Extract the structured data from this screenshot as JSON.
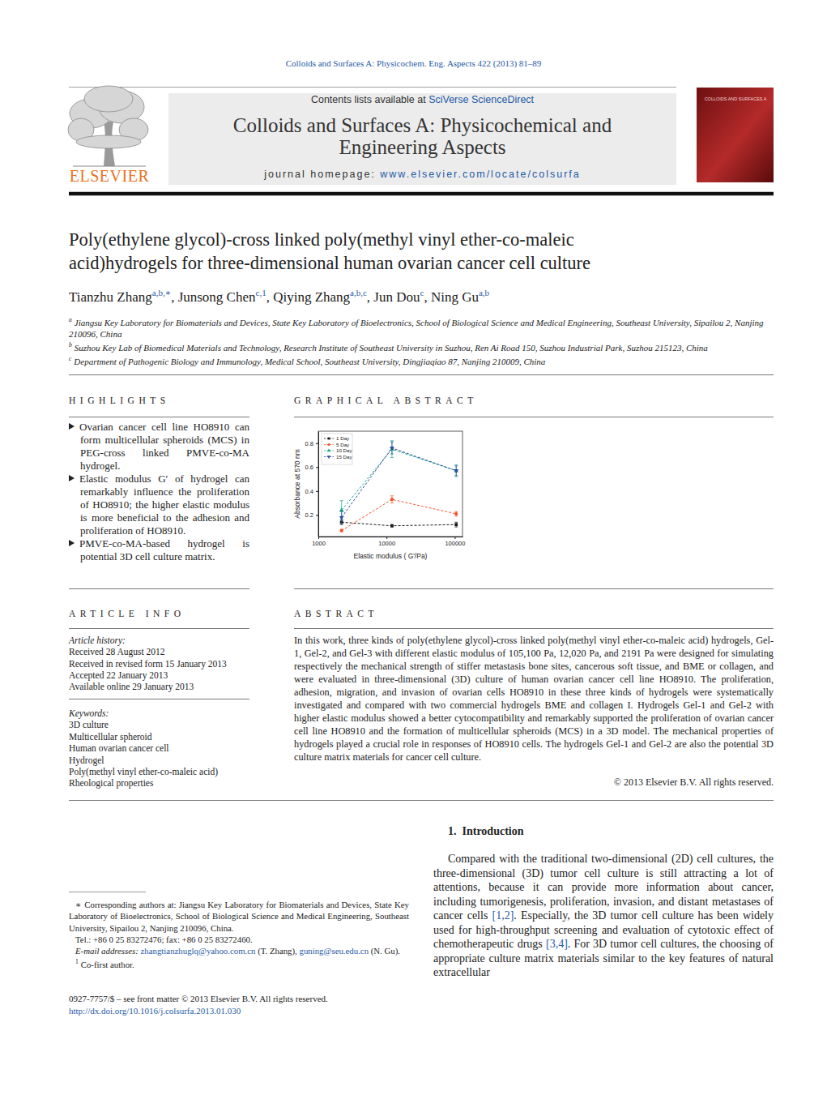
{
  "header": {
    "citation": "Colloids and Surfaces A: Physicochem. Eng. Aspects 422 (2013) 81–89",
    "contents_prefix": "Contents lists available at ",
    "contents_link": "SciVerse ScienceDirect",
    "journal": [
      "Colloids and Surfaces A: Physicochemical and",
      "Engineering Aspects"
    ],
    "homepage_prefix": "journal homepage: ",
    "homepage_link": "www.elsevier.com/locate/colsurfa",
    "publisher": "ELSEVIER",
    "cover_title": "COLLOIDS AND SURFACES A"
  },
  "title": [
    "Poly(ethylene glycol)-cross linked poly(methyl vinyl ether-co-maleic",
    "acid)hydrogels for three-dimensional human ovarian cancer cell culture"
  ],
  "authors": [
    {
      "name": "Tianzhu Zhang",
      "sup": "a,b,∗",
      "sep": ", "
    },
    {
      "name": "Junsong Chen",
      "sup": "c,1",
      "sep": ", "
    },
    {
      "name": "Qiying Zhang",
      "sup": "a,b,c",
      "sep": ", "
    },
    {
      "name": "Jun Dou",
      "sup": "c",
      "sep": ", "
    },
    {
      "name": "Ning Gu",
      "sup": "a,b"
    }
  ],
  "affiliations": [
    {
      "mark": "a",
      "text": "Jiangsu Key Laboratory for Biomaterials and Devices, State Key Laboratory of Bioelectronics, School of Biological Science and Medical Engineering, Southeast University, Sipailou 2, Nanjing 210096, China"
    },
    {
      "mark": "b",
      "text": "Suzhou Key Lab of Biomedical Materials and Technology, Research Institute of Southeast University in Suzhou, Ren Ai Road 150, Suzhou Industrial Park, Suzhou 215123, China"
    },
    {
      "mark": "c",
      "text": "Department of Pathogenic Biology and Immunology, Medical School, Southeast University, Dingjiaqiao 87, Nanjing 210009, China"
    }
  ],
  "highlights": {
    "heading": "HIGHLIGHTS",
    "items": [
      "Ovarian cancer cell line HO8910 can form multicellular spheroids (MCS) in PEG-cross linked PMVE-co-MA hydrogel.",
      "Elastic modulus G′ of hydrogel can remarkably influence the proliferation of HO8910; the higher elastic modulus is more beneficial to the adhesion and proliferation of HO8910.",
      "PMVE-co-MA-based hydrogel is potential 3D cell culture matrix."
    ]
  },
  "graphical_abstract": {
    "heading": "GRAPHICAL ABSTRACT"
  },
  "chart_data": {
    "type": "line",
    "x_label": "Elastic modulus ( G'/Pa)",
    "y_label": "Absorbance at 570 nm",
    "x": [
      2191,
      12020,
      105100
    ],
    "log": "x",
    "xlim": [
      1000,
      130000
    ],
    "xticks": [
      1000,
      10000,
      100000
    ],
    "ylim": [
      0.02,
      0.9
    ],
    "yticks": [
      0.2,
      0.4,
      0.6,
      0.8
    ],
    "grid": false,
    "legend": "upper left",
    "series": [
      {
        "name": "1 Day",
        "color": "#1a1a1a",
        "marker": "square",
        "line_style": "dashed",
        "values": [
          0.14,
          0.11,
          0.12
        ],
        "errors": [
          0.02,
          0.01,
          0.02
        ]
      },
      {
        "name": "5 Day",
        "color": "#f0552a",
        "marker": "circle",
        "line_style": "dashed",
        "values": [
          0.07,
          0.33,
          0.21
        ],
        "errors": [
          0.01,
          0.03,
          0.02
        ]
      },
      {
        "name": "10 Day",
        "color": "#17a589",
        "marker": "triangle",
        "line_style": "dashed",
        "values": [
          0.24,
          0.75,
          0.57
        ],
        "errors": [
          0.08,
          0.07,
          0.05
        ]
      },
      {
        "name": "15 Day",
        "color": "#2e4a9e",
        "marker": "triangle-down",
        "line_style": "dashed",
        "values": [
          0.18,
          0.76,
          0.57
        ],
        "errors": [
          0.05,
          0.05,
          0.04
        ]
      }
    ]
  },
  "article_info": {
    "heading": "ARTICLE INFO",
    "history_label": "Article history:",
    "history": [
      "Received 28 August 2012",
      "Received in revised form 15 January 2013",
      "Accepted 22 January 2013",
      "Available online 29 January 2013"
    ],
    "keywords_label": "Keywords:",
    "keywords": [
      "3D culture",
      "Multicellular spheroid",
      "Human ovarian cancer cell",
      "Hydrogel",
      "Poly(methyl vinyl ether-co-maleic acid)",
      "Rheological properties"
    ]
  },
  "abstract": {
    "heading": "ABSTRACT",
    "text": "In this work, three kinds of poly(ethylene glycol)-cross linked poly(methyl vinyl ether-co-maleic acid) hydrogels, Gel-1, Gel-2, and Gel-3 with different elastic modulus of 105,100 Pa, 12,020 Pa, and 2191 Pa were designed for simulating respectively the mechanical strength of stiffer metastasis bone sites, cancerous soft tissue, and BME or collagen, and were evaluated in three-dimensional (3D) culture of human ovarian cancer cell line HO8910. The proliferation, adhesion, migration, and invasion of ovarian cells HO8910 in these three kinds of hydrogels were systematically investigated and compared with two commercial hydrogels BME and collagen I. Hydrogels Gel-1 and Gel-2 with higher elastic modulus showed a better cytocompatibility and remarkably supported the proliferation of ovarian cancer cell line HO8910 and the formation of multicellular spheroids (MCS) in a 3D model. The mechanical properties of hydrogels played a crucial role in responses of HO8910 cells. The hydrogels Gel-1 and Gel-2 are also the potential 3D culture matrix materials for cancer cell culture.",
    "copyright": "© 2013 Elsevier B.V. All rights reserved."
  },
  "introduction": {
    "heading": "1.  Introduction",
    "paragraph": [
      {
        "text": "Compared with the traditional two-dimensional (2D) cell cultures, the three-dimensional (3D) tumor cell culture is still attracting a lot of attentions, because it can provide more information about cancer, including tumorigenesis, proliferation, invasion, and distant metastases of cancer cells ",
        "kind": "plain"
      },
      {
        "text": "[1,2]",
        "kind": "link"
      },
      {
        "text": ". Especially, the 3D tumor cell culture has been widely used for high-throughput screening and evaluation of cytotoxic effect of chemotherapeutic drugs ",
        "kind": "plain"
      },
      {
        "text": "[3,4]",
        "kind": "link"
      },
      {
        "text": ". For 3D tumor cell cultures, the choosing of appropriate culture matrix materials similar to the key features of natural extracellular",
        "kind": "plain"
      }
    ]
  },
  "footnotes": {
    "corresponding_mark": "∗",
    "corresponding": "Corresponding authors at: Jiangsu Key Laboratory for Biomaterials and Devices, State Key Laboratory of Bioelectronics, School of Biological Science and Medical Engineering, Southeast University, Sipailou 2, Nanjing 210096, China.",
    "tel": "Tel.: +86 0 25 83272476; fax: +86 0 25 83272460.",
    "email": [
      {
        "text": "E-mail addresses: ",
        "kind": "italic"
      },
      {
        "text": "zhangtianzhuglq@yahoo.com.cn",
        "kind": "link"
      },
      {
        "text": " (T. Zhang), ",
        "kind": "plain"
      },
      {
        "text": "guning@seu.edu.cn",
        "kind": "link"
      },
      {
        "text": " (N. Gu).",
        "kind": "plain"
      }
    ],
    "cofirst_mark": "1",
    "cofirst": "Co-first author."
  },
  "footer": {
    "issn": "0927-7757/$ – see front matter © 2013 Elsevier B.V. All rights reserved.",
    "doi": "http://dx.doi.org/10.1016/j.colsurfa.2013.01.030"
  }
}
